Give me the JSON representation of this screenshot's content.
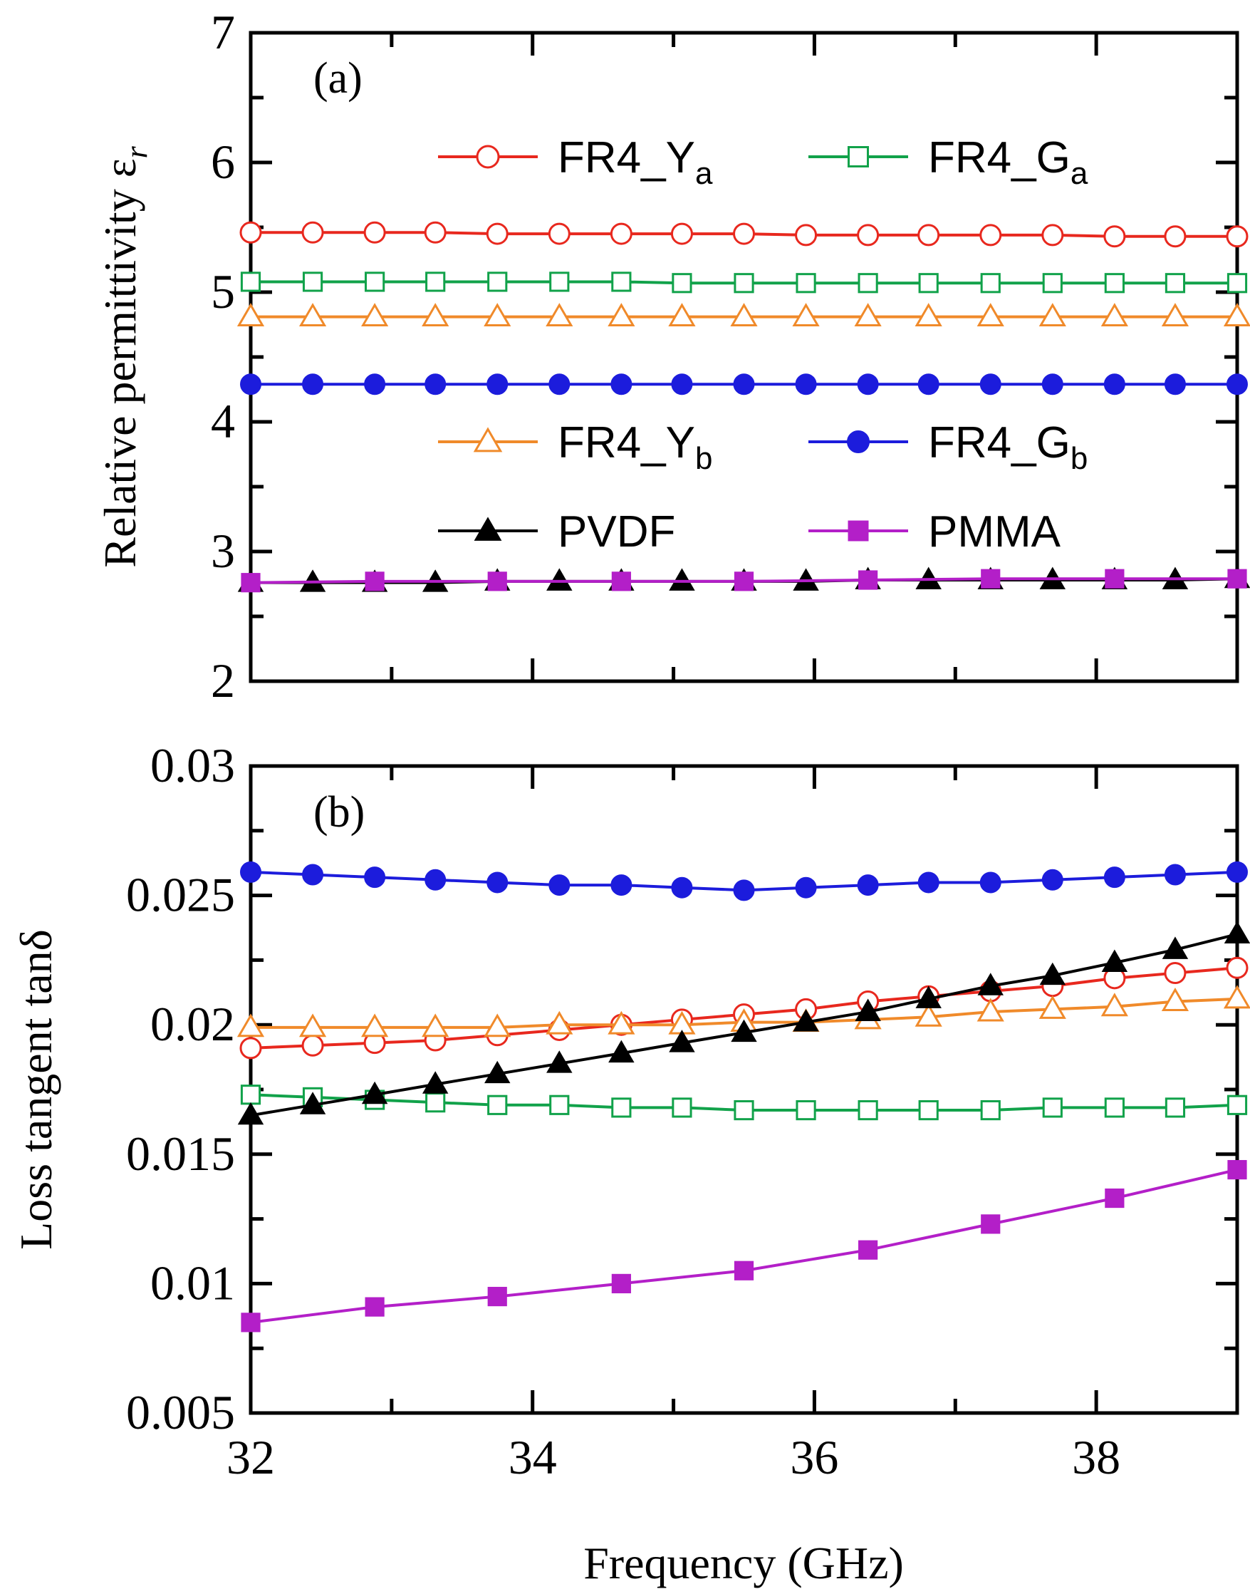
{
  "chart_data": [
    {
      "type": "line",
      "panel_label": "(a)",
      "title": "",
      "xlabel": "",
      "ylabel": "Relative permittivity ε",
      "ylabel_subscript": "r",
      "xlim": [
        32,
        39
      ],
      "ylim": [
        2,
        7
      ],
      "yticks": [
        2,
        3,
        4,
        5,
        6,
        7
      ],
      "ytick_labels": [
        "2",
        "3",
        "4",
        "5",
        "6",
        "7"
      ],
      "x": [
        32,
        32.44,
        32.88,
        33.31,
        33.75,
        34.19,
        34.63,
        35.06,
        35.5,
        35.94,
        36.38,
        36.81,
        37.25,
        37.69,
        38.13,
        38.56,
        39
      ],
      "series": [
        {
          "name": "FR4_Y",
          "sub": "a",
          "color": "#e8281e",
          "marker": "circle-open",
          "values": [
            5.46,
            5.46,
            5.46,
            5.46,
            5.45,
            5.45,
            5.45,
            5.45,
            5.45,
            5.44,
            5.44,
            5.44,
            5.44,
            5.44,
            5.43,
            5.43,
            5.43
          ]
        },
        {
          "name": "FR4_G",
          "sub": "a",
          "color": "#11a24a",
          "marker": "square-open",
          "values": [
            5.08,
            5.08,
            5.08,
            5.08,
            5.08,
            5.08,
            5.08,
            5.07,
            5.07,
            5.07,
            5.07,
            5.07,
            5.07,
            5.07,
            5.07,
            5.07,
            5.07
          ]
        },
        {
          "name": "FR4_Y",
          "sub": "b",
          "color": "#f08a2a",
          "marker": "triangle-open",
          "values": [
            4.81,
            4.81,
            4.81,
            4.81,
            4.81,
            4.81,
            4.81,
            4.81,
            4.81,
            4.81,
            4.81,
            4.81,
            4.81,
            4.81,
            4.81,
            4.81,
            4.81
          ]
        },
        {
          "name": "FR4_G",
          "sub": "b",
          "color": "#1c1cdc",
          "marker": "circle-filled",
          "values": [
            4.29,
            4.29,
            4.29,
            4.29,
            4.29,
            4.29,
            4.29,
            4.29,
            4.29,
            4.29,
            4.29,
            4.29,
            4.29,
            4.29,
            4.29,
            4.29,
            4.29
          ]
        },
        {
          "name": "PVDF",
          "sub": "",
          "color": "#000000",
          "marker": "triangle-filled",
          "values": [
            2.76,
            2.76,
            2.76,
            2.76,
            2.77,
            2.77,
            2.77,
            2.77,
            2.77,
            2.77,
            2.78,
            2.78,
            2.78,
            2.78,
            2.78,
            2.78,
            2.79
          ]
        },
        {
          "name": "PMMA",
          "sub": "",
          "color": "#b31fc8",
          "marker": "square-filled",
          "values": [
            2.76,
            null,
            2.77,
            null,
            2.77,
            null,
            2.77,
            null,
            2.77,
            null,
            2.78,
            null,
            2.79,
            null,
            2.79,
            null,
            2.79
          ]
        }
      ],
      "legend": "inside, two columns"
    },
    {
      "type": "line",
      "panel_label": "(b)",
      "title": "",
      "xlabel": "Frequency (GHz)",
      "ylabel": "Loss tangent tanδ",
      "xlim": [
        32,
        39
      ],
      "ylim": [
        0.005,
        0.03
      ],
      "xticks": [
        32,
        34,
        36,
        38
      ],
      "xtick_labels": [
        "32",
        "34",
        "36",
        "38"
      ],
      "yticks": [
        0.005,
        0.01,
        0.015,
        0.02,
        0.025,
        0.03
      ],
      "ytick_labels": [
        "0.005",
        "0.01",
        "0.015",
        "0.02",
        "0.025",
        "0.03"
      ],
      "x": [
        32,
        32.44,
        32.88,
        33.31,
        33.75,
        34.19,
        34.63,
        35.06,
        35.5,
        35.94,
        36.38,
        36.81,
        37.25,
        37.69,
        38.13,
        38.56,
        39
      ],
      "series": [
        {
          "name": "FR4_Y",
          "sub": "a",
          "color": "#e8281e",
          "marker": "circle-open",
          "values": [
            0.0191,
            0.0192,
            0.0193,
            0.0194,
            0.0196,
            0.0198,
            0.02,
            0.0202,
            0.0204,
            0.0206,
            0.0209,
            0.0211,
            0.0213,
            0.0215,
            0.0218,
            0.022,
            0.0222
          ]
        },
        {
          "name": "FR4_G",
          "sub": "a",
          "color": "#11a24a",
          "marker": "square-open",
          "values": [
            0.0173,
            0.0172,
            0.0171,
            0.017,
            0.0169,
            0.0169,
            0.0168,
            0.0168,
            0.0167,
            0.0167,
            0.0167,
            0.0167,
            0.0167,
            0.0168,
            0.0168,
            0.0168,
            0.0169
          ]
        },
        {
          "name": "FR4_Y",
          "sub": "b",
          "color": "#f08a2a",
          "marker": "triangle-open",
          "values": [
            0.0199,
            0.0199,
            0.0199,
            0.0199,
            0.0199,
            0.02,
            0.02,
            0.02,
            0.0201,
            0.0201,
            0.0202,
            0.0203,
            0.0205,
            0.0206,
            0.0207,
            0.0209,
            0.021
          ]
        },
        {
          "name": "FR4_G",
          "sub": "b",
          "color": "#1c1cdc",
          "marker": "circle-filled",
          "values": [
            0.0259,
            0.0258,
            0.0257,
            0.0256,
            0.0255,
            0.0254,
            0.0254,
            0.0253,
            0.0252,
            0.0253,
            0.0254,
            0.0255,
            0.0255,
            0.0256,
            0.0257,
            0.0258,
            0.0259
          ]
        },
        {
          "name": "PVDF",
          "sub": "",
          "color": "#000000",
          "marker": "triangle-filled",
          "values": [
            0.0165,
            0.0169,
            0.0173,
            0.0177,
            0.0181,
            0.0185,
            0.0189,
            0.0193,
            0.0197,
            0.0201,
            0.0205,
            0.021,
            0.0215,
            0.0219,
            0.0224,
            0.0229,
            0.0235
          ]
        },
        {
          "name": "PMMA",
          "sub": "",
          "color": "#b31fc8",
          "marker": "square-filled",
          "values": [
            0.0085,
            null,
            0.0091,
            null,
            0.0095,
            null,
            0.01,
            null,
            0.0105,
            null,
            0.0113,
            null,
            0.0123,
            null,
            0.0133,
            null,
            0.0144
          ]
        }
      ]
    }
  ]
}
